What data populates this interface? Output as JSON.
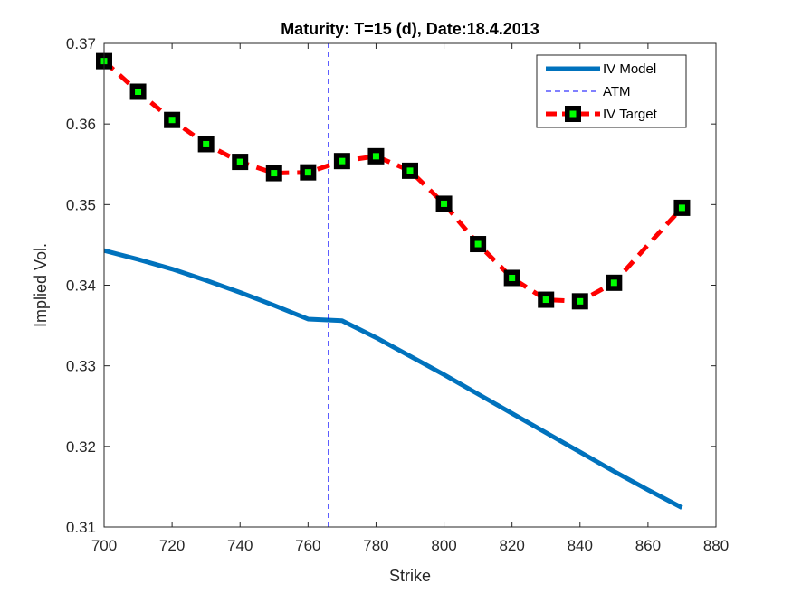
{
  "chart_data": {
    "type": "line",
    "title": "Maturity: T=15 (d), Date:18.4.2013",
    "xlabel": "Strike",
    "ylabel": "Implied Vol.",
    "xlim": [
      700,
      880
    ],
    "ylim": [
      0.31,
      0.37
    ],
    "xticks": [
      700,
      720,
      740,
      760,
      780,
      800,
      820,
      840,
      860,
      880
    ],
    "yticks": [
      0.31,
      0.32,
      0.33,
      0.34,
      0.35,
      0.36,
      0.37
    ],
    "xtick_labels": [
      "700",
      "720",
      "740",
      "760",
      "780",
      "800",
      "820",
      "840",
      "860",
      "880"
    ],
    "ytick_labels": [
      "0.31",
      "0.32",
      "0.33",
      "0.34",
      "0.35",
      "0.36",
      "0.37"
    ],
    "grid": false,
    "legend_position": "top-right",
    "series": [
      {
        "name": "IV Model",
        "color": "#0072bd",
        "style": "solid",
        "x": [
          700,
          710,
          720,
          730,
          740,
          750,
          760,
          770,
          780,
          790,
          800,
          810,
          820,
          830,
          840,
          850,
          860,
          870
        ],
        "y": [
          0.3443,
          0.3432,
          0.342,
          0.3406,
          0.3391,
          0.3375,
          0.3358,
          0.3356,
          0.3335,
          0.3312,
          0.3289,
          0.3265,
          0.3241,
          0.3217,
          0.3193,
          0.3169,
          0.3146,
          0.3124
        ]
      },
      {
        "name": "ATM",
        "color": "#0000ff",
        "style": "dashed",
        "x": [
          766,
          766
        ],
        "y": [
          0.31,
          0.37
        ]
      },
      {
        "name": "IV Target",
        "color": "#ff0000",
        "style": "dashed",
        "marker": "square",
        "marker_edge_color": "#000000",
        "marker_face_color": "#00ff00",
        "x": [
          700,
          710,
          720,
          730,
          740,
          750,
          760,
          770,
          780,
          790,
          800,
          810,
          820,
          830,
          840,
          850,
          860,
          870
        ],
        "y": [
          0.3678,
          0.364,
          0.3605,
          0.3575,
          0.3553,
          0.3539,
          0.354,
          0.3554,
          0.356,
          0.3542,
          0.3501,
          0.3451,
          0.3409,
          0.3382,
          0.338,
          0.3403,
          0.345,
          0.3496
        ],
        "marker_at": [
          700,
          710,
          720,
          730,
          740,
          750,
          760,
          770,
          780,
          790,
          800,
          810,
          820,
          830,
          840,
          850,
          870
        ]
      }
    ]
  }
}
